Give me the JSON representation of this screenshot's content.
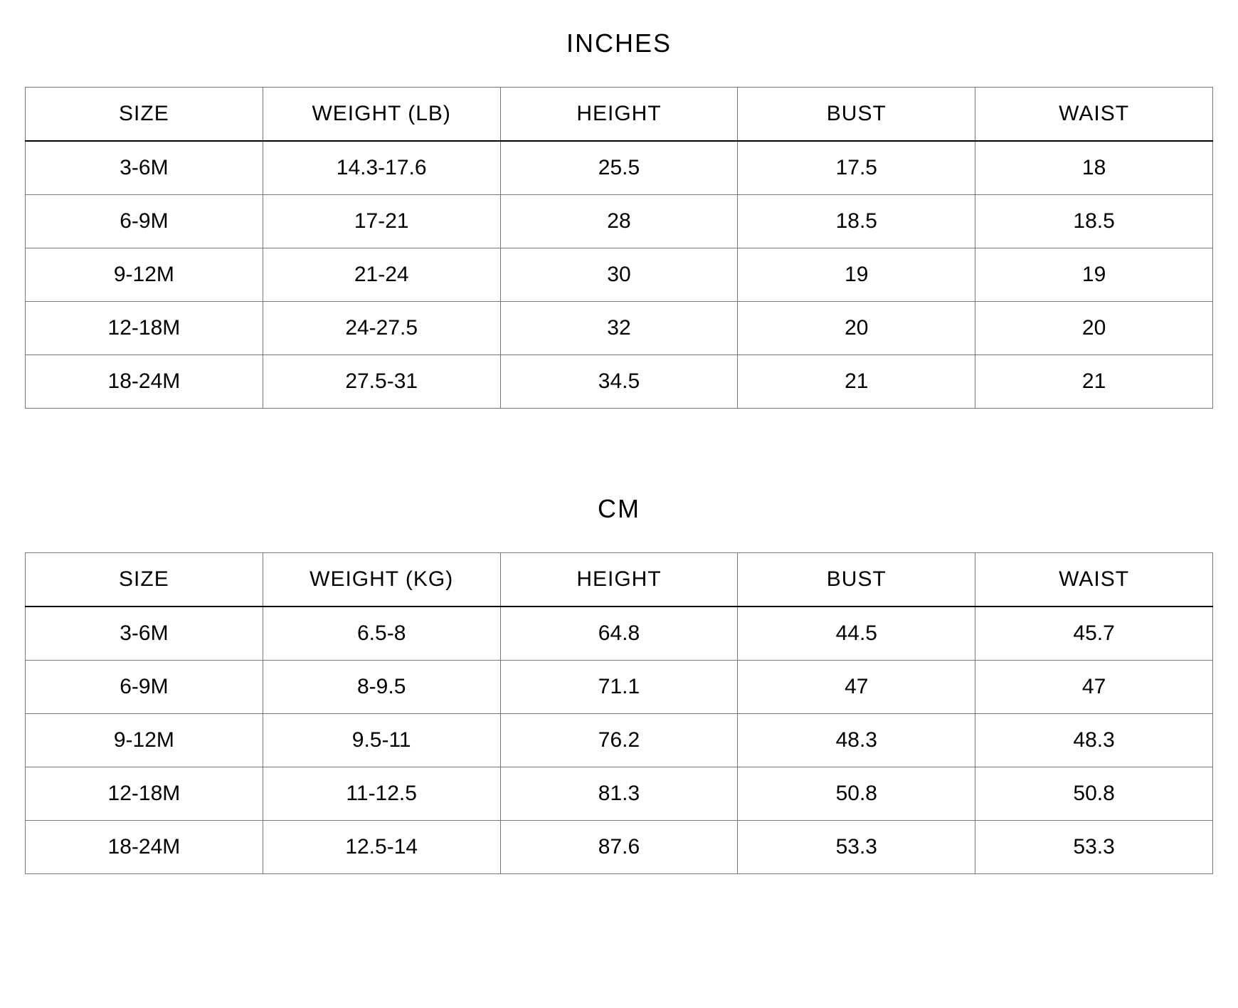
{
  "tables": {
    "inches": {
      "title": "INCHES",
      "columns": [
        "SIZE",
        "WEIGHT (LB)",
        "HEIGHT",
        "BUST",
        "WAIST"
      ],
      "rows": [
        [
          "3-6M",
          "14.3-17.6",
          "25.5",
          "17.5",
          "18"
        ],
        [
          "6-9M",
          "17-21",
          "28",
          "18.5",
          "18.5"
        ],
        [
          "9-12M",
          "21-24",
          "30",
          "19",
          "19"
        ],
        [
          "12-18M",
          "24-27.5",
          "32",
          "20",
          "20"
        ],
        [
          "18-24M",
          "27.5-31",
          "34.5",
          "21",
          "21"
        ]
      ]
    },
    "cm": {
      "title": "CM",
      "columns": [
        "SIZE",
        "WEIGHT (KG)",
        "HEIGHT",
        "BUST",
        "WAIST"
      ],
      "rows": [
        [
          "3-6M",
          "6.5-8",
          "64.8",
          "44.5",
          "45.7"
        ],
        [
          "6-9M",
          "8-9.5",
          "71.1",
          "47",
          "47"
        ],
        [
          "9-12M",
          "9.5-11",
          "76.2",
          "48.3",
          "48.3"
        ],
        [
          "12-18M",
          "11-12.5",
          "81.3",
          "50.8",
          "50.8"
        ],
        [
          "18-24M",
          "12.5-14",
          "87.6",
          "53.3",
          "53.3"
        ]
      ]
    }
  },
  "styling": {
    "background_color": "#ffffff",
    "text_color": "#000000",
    "border_color": "#777777",
    "header_border_bottom_color": "#000000",
    "title_fontsize": 36,
    "header_fontsize": 30,
    "cell_fontsize": 30,
    "font_family": "Helvetica Neue"
  }
}
